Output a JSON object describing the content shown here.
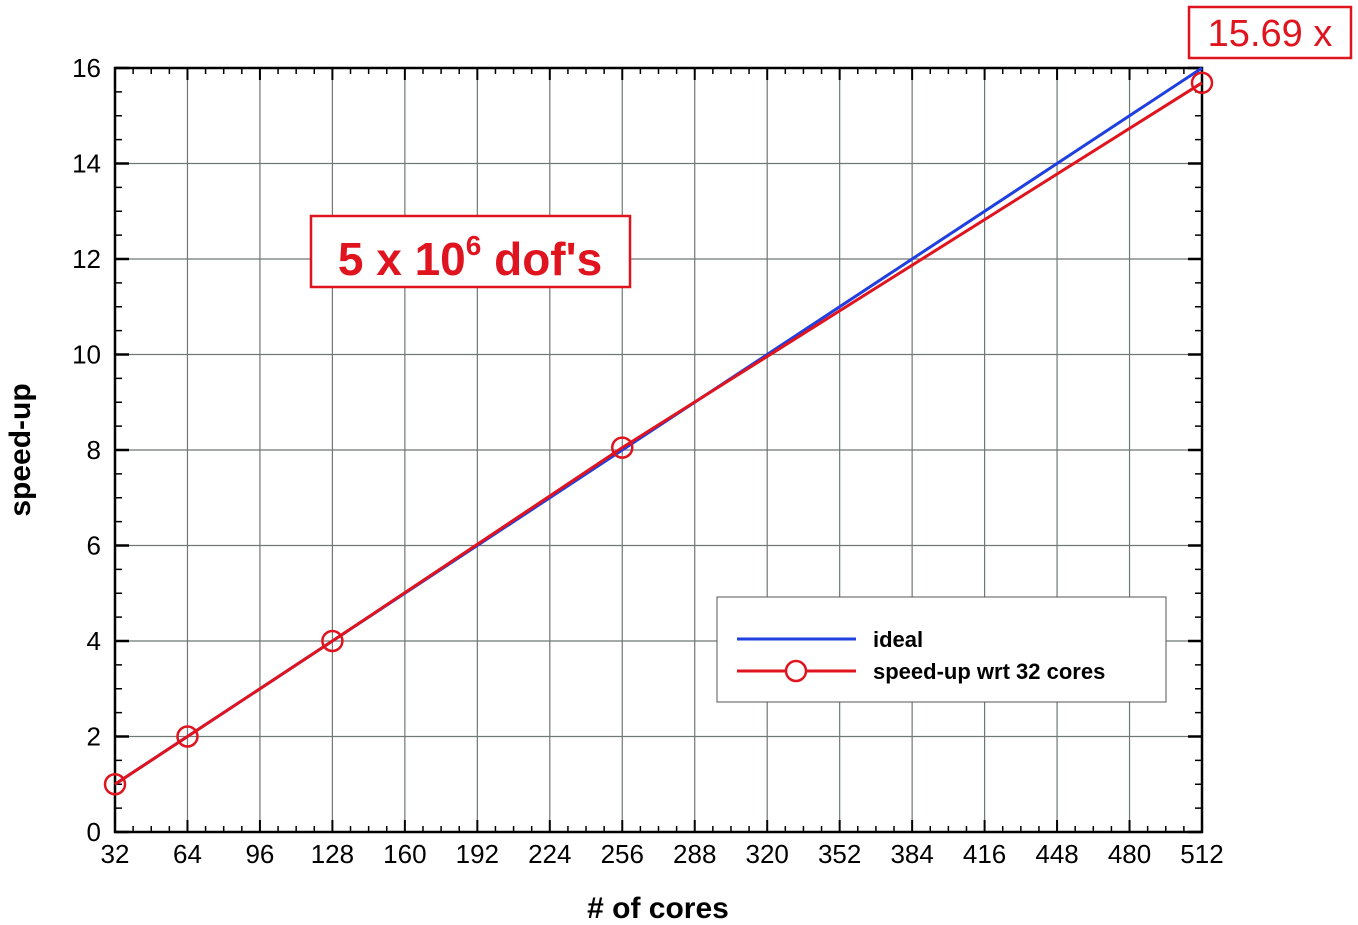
{
  "chart_data": {
    "type": "line",
    "xlabel": "# of cores",
    "ylabel": "speed-up",
    "xlim": [
      32,
      512
    ],
    "ylim": [
      0,
      16
    ],
    "xticks": [
      32,
      64,
      96,
      128,
      160,
      192,
      224,
      256,
      288,
      320,
      352,
      384,
      416,
      448,
      480,
      512
    ],
    "yticks": [
      0,
      2,
      4,
      6,
      8,
      10,
      12,
      14,
      16
    ],
    "grid": true,
    "legend_position": "bottom-right",
    "series": [
      {
        "name": "ideal",
        "color": "#1f3fe0",
        "marker": "none",
        "x": [
          32,
          512
        ],
        "y": [
          1,
          16
        ]
      },
      {
        "name": "speed-up wrt 32 cores",
        "color": "#e0141e",
        "marker": "circle",
        "x": [
          32,
          64,
          128,
          256,
          512
        ],
        "y": [
          1,
          2,
          4,
          8.05,
          15.69
        ]
      }
    ],
    "annotations": {
      "dofs_main": "5 x 10",
      "dofs_sup": "6",
      "dofs_tail": " dof's",
      "final_speedup": "15.69 x"
    }
  }
}
